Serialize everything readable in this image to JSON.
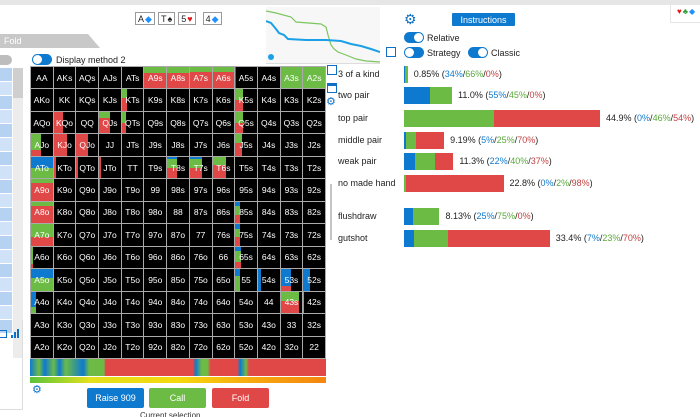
{
  "board": {
    "cards": [
      {
        "rank": "A",
        "suit": "diamond",
        "glyph": "◆",
        "color": "#1e90ff"
      },
      {
        "rank": "T",
        "suit": "spade",
        "glyph": "♠",
        "color": "#222222"
      },
      {
        "rank": "5",
        "suit": "heart",
        "glyph": "♥",
        "color": "#e01b1b"
      },
      {
        "rank": "4",
        "suit": "diamond",
        "glyph": "◆",
        "color": "#1e90ff"
      }
    ]
  },
  "fold_tab": "Fold",
  "display_method_label": "Display method 2",
  "grid": {
    "rows": [
      [
        "AA",
        "AKs",
        "AQs",
        "AJs",
        "ATs",
        "A9s",
        "A8s",
        "A7s",
        "A6s",
        "A5s",
        "A4s",
        "A3s",
        "A2s"
      ],
      [
        "AKo",
        "KK",
        "KQs",
        "KJs",
        "KTs",
        "K9s",
        "K8s",
        "K7s",
        "K6s",
        "K5s",
        "K4s",
        "K3s",
        "K2s"
      ],
      [
        "AQo",
        "KQo",
        "QQ",
        "QJs",
        "QTs",
        "Q9s",
        "Q8s",
        "Q7s",
        "Q6s",
        "Q5s",
        "Q4s",
        "Q3s",
        "Q2s"
      ],
      [
        "AJo",
        "KJo",
        "QJo",
        "JJ",
        "JTs",
        "J9s",
        "J8s",
        "J7s",
        "J6s",
        "J5s",
        "J4s",
        "J3s",
        "J2s"
      ],
      [
        "ATo",
        "KTo",
        "QTo",
        "JTo",
        "TT",
        "T9s",
        "T8s",
        "T7s",
        "T6s",
        "T5s",
        "T4s",
        "T3s",
        "T2s"
      ],
      [
        "A9o",
        "K9o",
        "Q9o",
        "J9o",
        "T9o",
        "99",
        "98s",
        "97s",
        "96s",
        "95s",
        "94s",
        "93s",
        "92s"
      ],
      [
        "A8o",
        "K8o",
        "Q8o",
        "J8o",
        "T8o",
        "98o",
        "88",
        "87s",
        "86s",
        "85s",
        "84s",
        "83s",
        "82s"
      ],
      [
        "A7o",
        "K7o",
        "Q7o",
        "J7o",
        "T7o",
        "97o",
        "87o",
        "77",
        "76s",
        "75s",
        "74s",
        "73s",
        "72s"
      ],
      [
        "A6o",
        "K6o",
        "Q6o",
        "J6o",
        "T6o",
        "96o",
        "86o",
        "76o",
        "66",
        "65s",
        "64s",
        "63s",
        "62s"
      ],
      [
        "A5o",
        "K5o",
        "Q5o",
        "J5o",
        "T5o",
        "95o",
        "85o",
        "75o",
        "65o",
        "55",
        "54s",
        "53s",
        "52s"
      ],
      [
        "A4o",
        "K4o",
        "Q4o",
        "J4o",
        "T4o",
        "94o",
        "84o",
        "74o",
        "64o",
        "54o",
        "44",
        "43s",
        "42s"
      ],
      [
        "A3o",
        "K3o",
        "Q3o",
        "J3o",
        "T3o",
        "93o",
        "83o",
        "73o",
        "63o",
        "53o",
        "43o",
        "33",
        "32s"
      ],
      [
        "A2o",
        "K2o",
        "Q2o",
        "J2o",
        "T2o",
        "92o",
        "82o",
        "72o",
        "62o",
        "52o",
        "42o",
        "32o",
        "22"
      ]
    ],
    "strategies": {
      "A9s": {
        "fill": 1.0,
        "raise": 0,
        "call": 0.3,
        "fold": 0.7
      },
      "A8s": {
        "fill": 1.0,
        "raise": 0,
        "call": 0.3,
        "fold": 0.7
      },
      "A7s": {
        "fill": 1.0,
        "raise": 0,
        "call": 0.25,
        "fold": 0.75
      },
      "A6s": {
        "fill": 1.0,
        "raise": 0,
        "call": 0.25,
        "fold": 0.75
      },
      "A3s": {
        "fill": 1.0,
        "raise": 0,
        "call": 1.0,
        "fold": 0
      },
      "A2s": {
        "fill": 1.0,
        "raise": 0,
        "call": 1.0,
        "fold": 0
      },
      "A5s": {
        "fill": 0.05,
        "raise": 1.0,
        "call": 0,
        "fold": 0
      },
      "KTs": {
        "fill": 0.25,
        "raise": 0,
        "call": 0.4,
        "fold": 0.6
      },
      "K5s": {
        "fill": 0.35,
        "raise": 0,
        "call": 0.5,
        "fold": 0.5
      },
      "KQo": {
        "fill": 0.45,
        "raise": 0,
        "call": 0,
        "fold": 1.0
      },
      "QJs": {
        "fill": 0.5,
        "raise": 0,
        "call": 0.3,
        "fold": 0.7
      },
      "QTs": {
        "fill": 0.2,
        "raise": 0,
        "call": 0.5,
        "fold": 0.5
      },
      "Q5s": {
        "fill": 0.35,
        "raise": 0,
        "call": 0.5,
        "fold": 0.5
      },
      "AJo": {
        "fill": 0.45,
        "raise": 0,
        "call": 0.75,
        "fold": 0.25
      },
      "KJo": {
        "fill": 0.6,
        "raise": 0,
        "call": 0,
        "fold": 1.0
      },
      "QJo": {
        "fill": 0.55,
        "raise": 0,
        "call": 0,
        "fold": 1.0
      },
      "J5s": {
        "fill": 0.3,
        "raise": 0,
        "call": 0.4,
        "fold": 0.6
      },
      "ATo": {
        "fill": 1.0,
        "raise": 0.5,
        "call": 0.5,
        "fold": 0
      },
      "KTo": {
        "fill": 0.1,
        "raise": 0,
        "call": 0,
        "fold": 1.0
      },
      "QTo": {
        "fill": 0.08,
        "raise": 0,
        "call": 0,
        "fold": 1.0
      },
      "JTo": {
        "fill": 0.08,
        "raise": 0,
        "call": 0,
        "fold": 1.0
      },
      "T8s": {
        "fill": 0.45,
        "raise": 0.1,
        "call": 0.4,
        "fold": 0.5
      },
      "T7s": {
        "fill": 0.55,
        "raise": 0.1,
        "call": 0.4,
        "fold": 0.5
      },
      "T6s": {
        "fill": 0.6,
        "raise": 0,
        "call": 0.4,
        "fold": 0.6
      },
      "A9o": {
        "fill": 1.0,
        "raise": 0,
        "call": 0.15,
        "fold": 0.85
      },
      "J9o": {
        "fill": 0.05,
        "raise": 0,
        "call": 0,
        "fold": 1.0
      },
      "A8o": {
        "fill": 1.0,
        "raise": 0,
        "call": 0.2,
        "fold": 0.8
      },
      "85s": {
        "fill": 0.2,
        "raise": 0.2,
        "call": 0.4,
        "fold": 0.4
      },
      "A7o": {
        "fill": 1.0,
        "raise": 0,
        "call": 0.6,
        "fold": 0.4
      },
      "75s": {
        "fill": 0.2,
        "raise": 0.2,
        "call": 0.4,
        "fold": 0.4
      },
      "A6o": {
        "fill": 0.1,
        "raise": 0,
        "call": 0.8,
        "fold": 0.2
      },
      "65s": {
        "fill": 0.25,
        "raise": 0.2,
        "call": 0.5,
        "fold": 0.3
      },
      "A5o": {
        "fill": 1.0,
        "raise": 0.4,
        "call": 0.6,
        "fold": 0
      },
      "55": {
        "fill": 0.2,
        "raise": 0.3,
        "call": 0.7,
        "fold": 0
      },
      "54s": {
        "fill": 0.12,
        "raise": 1.0,
        "call": 0,
        "fold": 0
      },
      "53s": {
        "fill": 0.5,
        "raise": 0.8,
        "call": 0,
        "fold": 0.2
      },
      "52s": {
        "fill": 0.3,
        "raise": 1.0,
        "call": 0,
        "fold": 0
      },
      "A4o": {
        "fill": 0.25,
        "raise": 0.7,
        "call": 0.3,
        "fold": 0
      },
      "43s": {
        "fill": 0.85,
        "raise": 0,
        "call": 0.45,
        "fold": 0.55
      },
      "42s": {
        "fill": 0.05,
        "raise": 0,
        "call": 1.0,
        "fold": 0
      }
    }
  },
  "actions": {
    "raise": "Raise 909",
    "call": "Call",
    "fold": "Fold"
  },
  "subcaption": "Current selection",
  "instructions_label": "Instructions",
  "options": {
    "relative": "Relative",
    "strategy": "Strategy",
    "classic": "Classic"
  },
  "suit_filter": [
    "♥",
    "♣",
    "◆"
  ],
  "categories": [
    {
      "name": "3 of a kind",
      "pct": "0.85%",
      "raise": "34%",
      "call": "66%",
      "fold": "0%",
      "freq": 0.0085
    },
    {
      "name": "two pair",
      "pct": "11.0%",
      "raise": "55%",
      "call": "45%",
      "fold": "0%",
      "freq": 0.11
    },
    {
      "name": "top pair",
      "pct": "44.9%",
      "raise": "0%",
      "call": "46%",
      "fold": "54%",
      "freq": 0.449
    },
    {
      "name": "middle pair",
      "pct": "9.19%",
      "raise": "5%",
      "call": "25%",
      "fold": "70%",
      "freq": 0.0919
    },
    {
      "name": "weak pair",
      "pct": "11.3%",
      "raise": "22%",
      "call": "40%",
      "fold": "37%",
      "freq": 0.113
    },
    {
      "name": "no made hand",
      "pct": "22.8%",
      "raise": "0%",
      "call": "2%",
      "fold": "98%",
      "freq": 0.228
    },
    {
      "name": "flushdraw",
      "pct": "8.13%",
      "raise": "25%",
      "call": "75%",
      "fold": "0%",
      "freq": 0.0813
    },
    {
      "name": "gutshot",
      "pct": "33.4%",
      "raise": "7%",
      "call": "23%",
      "fold": "70%",
      "freq": 0.334
    }
  ],
  "colors": {
    "raise": "#0e7acf",
    "call": "#6cbb45",
    "fold": "#e04848"
  }
}
